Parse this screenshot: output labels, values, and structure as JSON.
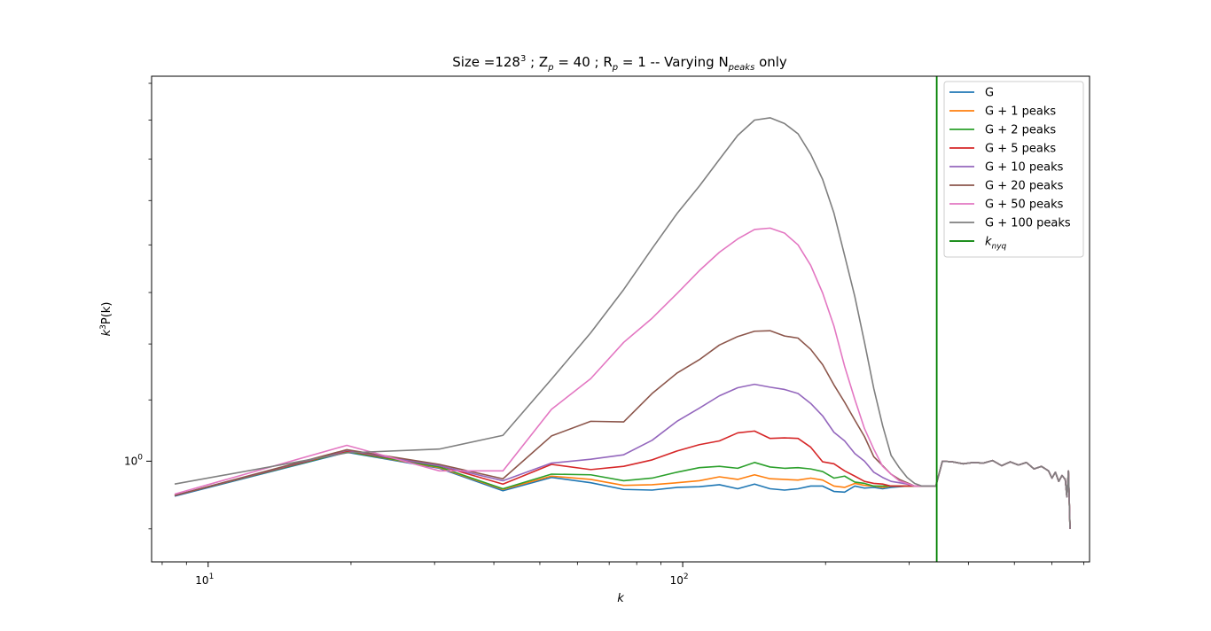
{
  "chart_data": {
    "type": "line",
    "title": "Size  =128³ ; Zₚ=40 ; Rₚ=1 -- Varying Nₚₑₐₖₛ only",
    "title_parts": {
      "t1": "Size  =128",
      "t1_sup": "3",
      "t2": " ; Z",
      "t2_sub": "p",
      "t3": " = 40 ; R",
      "t3_sub": "p",
      "t4": " = 1 -- Varying N",
      "t4_sub": "peaks",
      "t5": " only"
    },
    "xlabel": "k",
    "ylabel": "k³P(k)",
    "ylabel_parts": {
      "a": "k",
      "sup": "3",
      "b": "P(k)"
    },
    "xscale": "log",
    "yscale": "log",
    "xlim": [
      7.6,
      720
    ],
    "ylim": [
      0.855,
      1.82
    ],
    "xticks": [
      {
        "value": 10,
        "base": "10",
        "exp": "1"
      },
      {
        "value": 100,
        "base": "10",
        "exp": "2"
      }
    ],
    "yticks": [
      {
        "value": 1.0,
        "label": "10",
        "exp": "0"
      }
    ],
    "legend_position": "top-right",
    "vline": {
      "name": "k_nyq",
      "label_base": "k",
      "label_sub": "nyq",
      "x": 343,
      "color": "#008000"
    },
    "x": [
      8.5,
      19.6,
      30.7,
      41.8,
      52.9,
      64.0,
      75.1,
      86.2,
      97.3,
      108.4,
      119.5,
      130.6,
      141.7,
      152.8,
      163.9,
      175.0,
      186.1,
      197.2,
      208.3,
      219.4,
      230.5,
      241.6,
      252.7,
      263.8,
      274.9,
      286.0,
      297.1,
      308.2,
      319.3,
      330.4,
      341.5
    ],
    "tail": {
      "x": [
        352.6,
        370,
        390,
        410,
        430,
        450,
        470,
        490,
        510,
        530,
        550,
        570,
        590,
        600,
        610,
        620,
        630,
        640,
        645,
        650,
        655
      ],
      "values": [
        1.0,
        0.999,
        0.996,
        0.998,
        0.997,
        1.001,
        0.993,
        0.999,
        0.994,
        0.998,
        0.988,
        0.992,
        0.985,
        0.974,
        0.983,
        0.969,
        0.978,
        0.972,
        0.946,
        0.985,
        0.9
      ]
    },
    "series": [
      {
        "name": "G",
        "label_prefix": "G",
        "label_suffix": "",
        "color": "#1f77b4",
        "values": [
          0.947,
          1.014,
          0.989,
          0.955,
          0.975,
          0.967,
          0.957,
          0.956,
          0.96,
          0.961,
          0.964,
          0.958,
          0.965,
          0.958,
          0.956,
          0.958,
          0.962,
          0.962,
          0.954,
          0.953,
          0.962,
          0.959,
          0.96,
          0.958,
          0.96,
          0.961,
          0.962,
          0.962,
          0.962,
          0.962,
          0.962
        ]
      },
      {
        "name": "G +  1 peaks",
        "label_prefix": "G +  ",
        "label_suffix": " peaks",
        "label_num": "1",
        "color": "#ff7f0e",
        "values": [
          0.948,
          1.015,
          0.99,
          0.957,
          0.977,
          0.972,
          0.963,
          0.964,
          0.967,
          0.97,
          0.976,
          0.972,
          0.979,
          0.973,
          0.972,
          0.971,
          0.974,
          0.971,
          0.962,
          0.96,
          0.966,
          0.963,
          0.962,
          0.96,
          0.962,
          0.962,
          0.962,
          0.962,
          0.962,
          0.962,
          0.962
        ]
      },
      {
        "name": "G +  2 peaks",
        "label_prefix": "G +  ",
        "label_suffix": " peaks",
        "label_num": "2",
        "color": "#2ca02c",
        "values": [
          0.948,
          1.015,
          0.991,
          0.958,
          0.98,
          0.979,
          0.97,
          0.974,
          0.983,
          0.99,
          0.992,
          0.989,
          0.998,
          0.991,
          0.989,
          0.99,
          0.988,
          0.984,
          0.974,
          0.977,
          0.968,
          0.966,
          0.962,
          0.962,
          0.962,
          0.962,
          0.962,
          0.962,
          0.962,
          0.962,
          0.962
        ]
      },
      {
        "name": "G +  5 peaks",
        "label_prefix": "G +  ",
        "label_suffix": " peaks",
        "label_num": "5",
        "color": "#d62728",
        "values": [
          0.948,
          1.016,
          0.993,
          0.965,
          0.995,
          0.987,
          0.992,
          1.002,
          1.016,
          1.026,
          1.032,
          1.045,
          1.048,
          1.036,
          1.037,
          1.036,
          1.022,
          0.999,
          0.996,
          0.985,
          0.977,
          0.969,
          0.966,
          0.965,
          0.962,
          0.962,
          0.962,
          0.962,
          0.962,
          0.962,
          0.962
        ]
      },
      {
        "name": "G +  10 peaks",
        "label_prefix": "G +  ",
        "label_suffix": " peaks",
        "label_num": "10",
        "color": "#9467bd",
        "values": [
          0.948,
          1.017,
          0.993,
          0.97,
          0.997,
          1.003,
          1.01,
          1.033,
          1.064,
          1.086,
          1.107,
          1.121,
          1.127,
          1.122,
          1.118,
          1.111,
          1.094,
          1.073,
          1.046,
          1.032,
          1.012,
          1.0,
          0.983,
          0.975,
          0.969,
          0.967,
          0.965,
          0.962,
          0.962,
          0.962,
          0.962
        ]
      },
      {
        "name": "G +  20 peaks",
        "label_prefix": "G +  ",
        "label_suffix": " peaks",
        "label_num": "20",
        "color": "#8c564b",
        "values": [
          0.948,
          1.018,
          0.995,
          0.973,
          1.04,
          1.064,
          1.063,
          1.111,
          1.147,
          1.171,
          1.198,
          1.214,
          1.224,
          1.225,
          1.215,
          1.211,
          1.19,
          1.162,
          1.126,
          1.096,
          1.066,
          1.039,
          1.007,
          0.993,
          0.98,
          0.972,
          0.967,
          0.962,
          0.962,
          0.962,
          0.962
        ]
      },
      {
        "name": "G +  50 peaks",
        "label_prefix": "G +  ",
        "label_suffix": " peaks",
        "label_num": "50",
        "color": "#e377c2",
        "values": [
          0.95,
          1.025,
          0.985,
          0.985,
          1.084,
          1.137,
          1.203,
          1.249,
          1.298,
          1.345,
          1.384,
          1.413,
          1.434,
          1.437,
          1.426,
          1.4,
          1.356,
          1.299,
          1.234,
          1.159,
          1.101,
          1.052,
          1.019,
          0.992,
          0.98,
          0.97,
          0.966,
          0.962,
          0.962,
          0.962,
          0.962
        ]
      },
      {
        "name": "G +  100 peaks",
        "label_prefix": "G +  ",
        "label_suffix": " peaks",
        "label_num": "100",
        "color": "#7f7f7f",
        "values": [
          0.965,
          1.013,
          1.019,
          1.041,
          1.136,
          1.221,
          1.306,
          1.392,
          1.47,
          1.534,
          1.599,
          1.66,
          1.7,
          1.706,
          1.691,
          1.664,
          1.612,
          1.55,
          1.471,
          1.377,
          1.292,
          1.203,
          1.12,
          1.057,
          1.009,
          0.99,
          0.975,
          0.966,
          0.962,
          0.962,
          0.962
        ]
      }
    ]
  }
}
